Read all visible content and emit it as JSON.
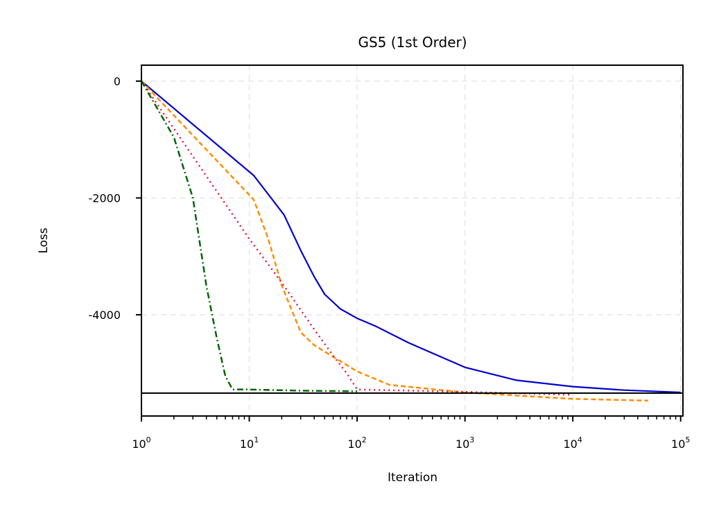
{
  "chart_data": {
    "type": "line",
    "title": "GS5 (1st Order)",
    "xlabel": "Iteration",
    "ylabel": "Loss",
    "xscale": "log",
    "xlim": [
      1,
      105000
    ],
    "ylim": [
      -5733,
      273
    ],
    "xticks": [
      {
        "base": "10",
        "exp": "0",
        "value": 1
      },
      {
        "base": "10",
        "exp": "1",
        "value": 10
      },
      {
        "base": "10",
        "exp": "2",
        "value": 100
      },
      {
        "base": "10",
        "exp": "3",
        "value": 1000
      },
      {
        "base": "10",
        "exp": "4",
        "value": 10000
      },
      {
        "base": "10",
        "exp": "5",
        "value": 100000
      }
    ],
    "yticks": [
      {
        "label": "0",
        "value": 0
      },
      {
        "label": "-2000",
        "value": -2000
      },
      {
        "label": "-4000",
        "value": -4000
      }
    ],
    "grid": true,
    "legend": null,
    "reference_line": {
      "y": -5341,
      "color": "#000000",
      "style": "solid"
    },
    "series": [
      {
        "name": "blue-solid",
        "color": "#0000cd",
        "style": "solid",
        "x": [
          1,
          11,
          21,
          30,
          40,
          50,
          70,
          100,
          150,
          300,
          1000,
          3000,
          10000,
          30000,
          100000
        ],
        "y": [
          0,
          -1615,
          -2290,
          -2900,
          -3350,
          -3650,
          -3900,
          -4060,
          -4200,
          -4480,
          -4900,
          -5120,
          -5230,
          -5290,
          -5330
        ]
      },
      {
        "name": "orange-dashed",
        "color": "#ff8c00",
        "style": "dashed",
        "x": [
          1,
          11,
          15,
          20,
          30,
          40,
          60,
          100,
          200,
          1000,
          10000,
          50000
        ],
        "y": [
          0,
          -2030,
          -2700,
          -3500,
          -4300,
          -4520,
          -4720,
          -4970,
          -5200,
          -5330,
          -5440,
          -5470
        ]
      },
      {
        "name": "red-dotted",
        "color": "#dc143c",
        "style": "dotted",
        "x": [
          1,
          10,
          20,
          40,
          60,
          80,
          100,
          1000,
          10000
        ],
        "y": [
          0,
          -2700,
          -3450,
          -4250,
          -4700,
          -5000,
          -5280,
          -5320,
          -5370
        ]
      },
      {
        "name": "green-dashdot",
        "color": "#006400",
        "style": "dashdot",
        "x": [
          1,
          2,
          3,
          4,
          5,
          6,
          7,
          10,
          30,
          100
        ],
        "y": [
          0,
          -960,
          -2000,
          -3500,
          -4400,
          -5050,
          -5280,
          -5280,
          -5300,
          -5310
        ]
      }
    ]
  }
}
